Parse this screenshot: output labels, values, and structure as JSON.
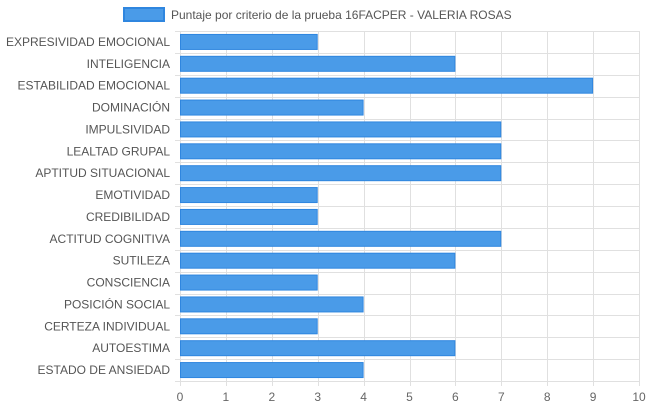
{
  "chart_data": {
    "type": "bar",
    "orientation": "horizontal",
    "categories": [
      "EXPRESIVIDAD EMOCIONAL",
      "INTELIGENCIA",
      "ESTABILIDAD EMOCIONAL",
      "DOMINACIÓN",
      "IMPULSIVIDAD",
      "LEALTAD GRUPAL",
      "APTITUD SITUACIONAL",
      "EMOTIVIDAD",
      "CREDIBILIDAD",
      "ACTITUD COGNITIVA",
      "SUTILEZA",
      "CONSCIENCIA",
      "POSICIÓN SOCIAL",
      "CERTEZA INDIVIDUAL",
      "AUTOESTIMA",
      "ESTADO DE ANSIEDAD"
    ],
    "series": [
      {
        "name": "Puntaje por criterio de la prueba 16FACPER - VALERIA ROSAS",
        "values": [
          3,
          6,
          9,
          4,
          7,
          7,
          7,
          3,
          3,
          7,
          6,
          3,
          4,
          3,
          6,
          4
        ],
        "color": "#4a9be8",
        "border_color": "#2f86df"
      }
    ],
    "x_ticks": [
      "0",
      "1",
      "2",
      "3",
      "4",
      "5",
      "6",
      "7",
      "8",
      "9",
      "10"
    ],
    "xlim": [
      0,
      10
    ],
    "grid": true,
    "legend_position": "top",
    "grid_color": "#e0e0e0"
  }
}
